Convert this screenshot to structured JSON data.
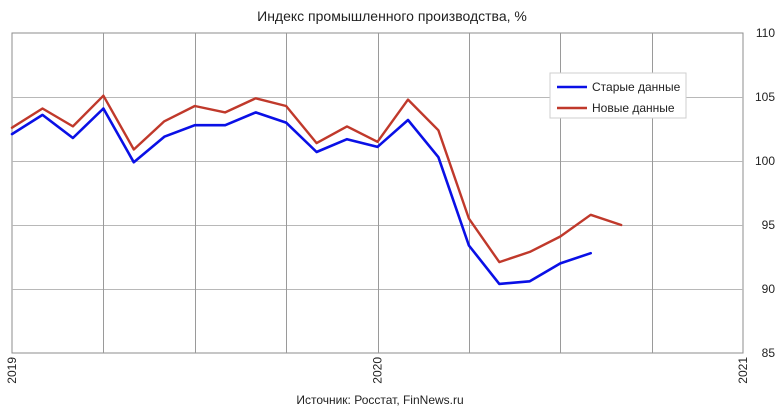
{
  "chart_data": {
    "type": "line",
    "title": "Индекс промышленного производства, %",
    "source": "Источник: Росстат, FinNews.ru",
    "x_tick_labels": [
      "2019",
      "2020",
      "2021"
    ],
    "y_ticks": [
      85,
      90,
      95,
      100,
      105,
      110
    ],
    "ylim": [
      85,
      110
    ],
    "months_axis": "monthly, Jan 2019 – Jan 2021",
    "grid": true,
    "legend_position": "top-right",
    "series": [
      {
        "name": "Старые данные",
        "color": "#0a10e6",
        "x": [
          "2019-01",
          "2019-02",
          "2019-03",
          "2019-04",
          "2019-05",
          "2019-06",
          "2019-07",
          "2019-08",
          "2019-09",
          "2019-10",
          "2019-11",
          "2019-12",
          "2020-01",
          "2020-02",
          "2020-03",
          "2020-04",
          "2020-05",
          "2020-06",
          "2020-07",
          "2020-08"
        ],
        "values": [
          102.1,
          103.6,
          101.8,
          104.1,
          99.9,
          101.9,
          102.8,
          102.8,
          103.8,
          103.0,
          100.7,
          101.7,
          101.1,
          103.2,
          100.3,
          93.4,
          90.4,
          90.6,
          92.0,
          92.8
        ]
      },
      {
        "name": "Новые данные",
        "color": "#c0392b",
        "x": [
          "2019-01",
          "2019-02",
          "2019-03",
          "2019-04",
          "2019-05",
          "2019-06",
          "2019-07",
          "2019-08",
          "2019-09",
          "2019-10",
          "2019-11",
          "2019-12",
          "2020-01",
          "2020-02",
          "2020-03",
          "2020-04",
          "2020-05",
          "2020-06",
          "2020-07",
          "2020-08",
          "2020-09"
        ],
        "values": [
          102.6,
          104.1,
          102.7,
          105.1,
          100.9,
          103.1,
          104.3,
          103.8,
          104.9,
          104.3,
          101.4,
          102.7,
          101.5,
          104.8,
          102.4,
          95.5,
          92.1,
          92.9,
          94.1,
          95.8,
          95.0
        ]
      }
    ]
  }
}
